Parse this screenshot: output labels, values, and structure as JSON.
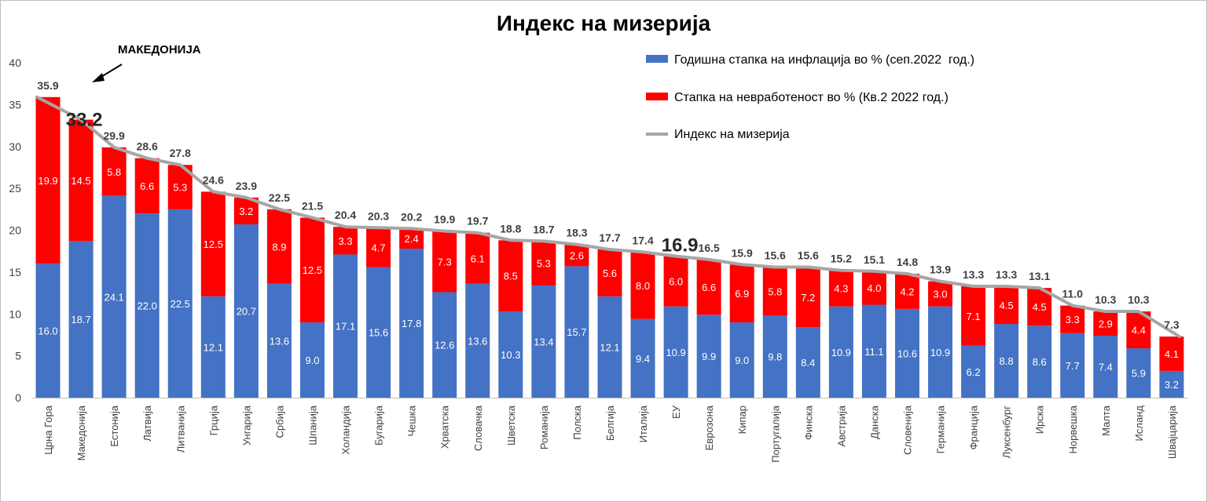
{
  "colors": {
    "inflation": "#4472C4",
    "unemployment": "#FF0000",
    "index_line": "#A6A6A6",
    "text": "#404040"
  },
  "chart_data": {
    "type": "bar",
    "stacked": true,
    "title": "Индекс на мизерија",
    "annotation": "МАКЕДОНИЈА",
    "xlabel": "",
    "ylabel": "",
    "ylim": [
      0,
      40
    ],
    "yticks": [
      0,
      5,
      10,
      15,
      20,
      25,
      30,
      35,
      40
    ],
    "grid": false,
    "legend_position": "top-right",
    "emphasized_categories": [
      "Македонија",
      "ЕУ"
    ],
    "categories": [
      "Црна Гора",
      "Македонија",
      "Естонија",
      "Латвија",
      "Литванија",
      "Грција",
      "Унгарија",
      "Србија",
      "Шпанија",
      "Холандија",
      "Бугарија",
      "Чешка",
      "Хрватска",
      "Словачка",
      "Шветска",
      "Романија",
      "Полска",
      "Белгија",
      "Италија",
      "ЕУ",
      "Еврозона",
      "Кипар",
      "Португалија",
      "Финска",
      "Австрија",
      "Данска",
      "Словенија",
      "Германија",
      "Франција",
      "Луксенбург",
      "Ирска",
      "Норвешка",
      "Малта",
      "Исланд",
      "Швајцарија"
    ],
    "series": [
      {
        "name": "Годишна стапка на инфлација во % (сеп.2022  год.)",
        "type": "bar",
        "values": [
          16.0,
          18.7,
          24.1,
          22.0,
          22.5,
          12.1,
          20.7,
          13.6,
          9.0,
          17.1,
          15.6,
          17.8,
          12.6,
          13.6,
          10.3,
          13.4,
          15.7,
          12.1,
          9.4,
          10.9,
          9.9,
          9.0,
          9.8,
          8.4,
          10.9,
          11.1,
          10.6,
          10.9,
          6.2,
          8.8,
          8.6,
          7.7,
          7.4,
          5.9,
          3.2
        ]
      },
      {
        "name": "Стапка на невработеност во % (Кв.2 2022 год.)",
        "type": "bar",
        "values": [
          19.9,
          14.5,
          5.8,
          6.6,
          5.3,
          12.5,
          3.2,
          8.9,
          12.5,
          3.3,
          4.7,
          2.4,
          7.3,
          6.1,
          8.5,
          5.3,
          2.6,
          5.6,
          8.0,
          6.0,
          6.6,
          6.9,
          5.8,
          7.2,
          4.3,
          4.0,
          4.2,
          3.0,
          7.1,
          4.5,
          4.5,
          3.3,
          2.9,
          4.4,
          4.1
        ]
      },
      {
        "name": "Индекс на мизерија",
        "type": "line",
        "values": [
          35.9,
          33.2,
          29.9,
          28.6,
          27.8,
          24.6,
          23.9,
          22.5,
          21.5,
          20.4,
          20.3,
          20.2,
          19.9,
          19.7,
          18.8,
          18.7,
          18.3,
          17.7,
          17.4,
          16.9,
          16.5,
          15.9,
          15.6,
          15.6,
          15.2,
          15.1,
          14.8,
          13.9,
          13.3,
          13.3,
          13.1,
          11.0,
          10.3,
          10.3,
          7.3
        ]
      }
    ]
  }
}
